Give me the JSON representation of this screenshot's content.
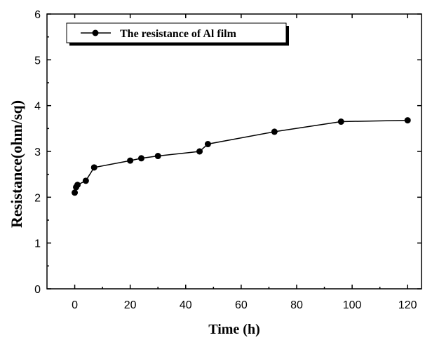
{
  "chart_data": {
    "type": "line",
    "title": "",
    "xlabel": "Time (h)",
    "ylabel": "Resistance(ohm/sq)",
    "xlim": [
      -10,
      125
    ],
    "ylim": [
      0,
      6
    ],
    "x_ticks": [
      0,
      20,
      40,
      60,
      80,
      100,
      120
    ],
    "y_ticks": [
      0,
      1,
      2,
      3,
      4,
      5,
      6
    ],
    "legend_position": "top-left",
    "grid": false,
    "series": [
      {
        "name": "The resistance of Al film",
        "color": "#000000",
        "marker": "circle",
        "x": [
          0,
          0.5,
          1,
          4,
          7,
          20,
          24,
          30,
          45,
          48,
          72,
          96,
          120
        ],
        "y": [
          2.1,
          2.22,
          2.27,
          2.36,
          2.65,
          2.8,
          2.85,
          2.9,
          3.0,
          3.16,
          3.43,
          3.65,
          3.68
        ]
      }
    ]
  }
}
